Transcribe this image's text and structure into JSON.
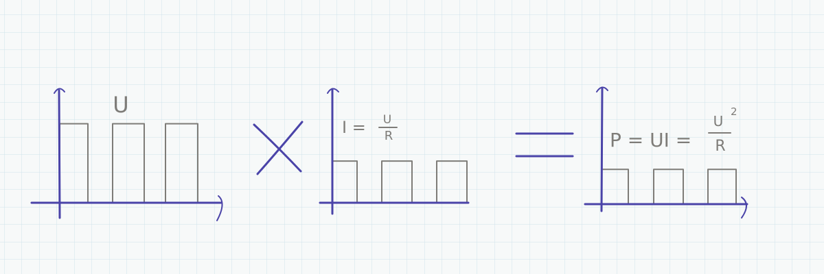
{
  "grid": {
    "color": "#cfe3ec"
  },
  "colors": {
    "ink": "#4a43a8",
    "pencil": "#7e7c78"
  },
  "chart_data": [
    {
      "type": "bar",
      "title": "U",
      "categories": [
        "",
        "",
        ""
      ],
      "values": [
        1.0,
        1.0,
        1.0
      ],
      "ylim": [
        0,
        1.3
      ],
      "xlabel": "",
      "ylabel": ""
    },
    {
      "type": "bar",
      "title": "I = U/R",
      "categories": [
        "",
        "",
        ""
      ],
      "values": [
        0.67,
        0.67,
        0.67
      ],
      "ylim": [
        0,
        1.3
      ],
      "xlabel": "",
      "ylabel": ""
    },
    {
      "type": "bar",
      "title": "P = UI = U²/R",
      "categories": [
        "",
        "",
        ""
      ],
      "values": [
        0.5,
        0.5,
        0.5
      ],
      "ylim": [
        0,
        1.3
      ],
      "xlabel": "",
      "ylabel": ""
    }
  ],
  "labels": {
    "u": "U",
    "i_lhs": "I =",
    "i_num": "U",
    "i_den": "R",
    "p_lhs": "P = UI =",
    "p_num": "U",
    "p_exp": "2",
    "p_den": "R"
  },
  "operators": {
    "multiply": "×",
    "equals": "="
  }
}
